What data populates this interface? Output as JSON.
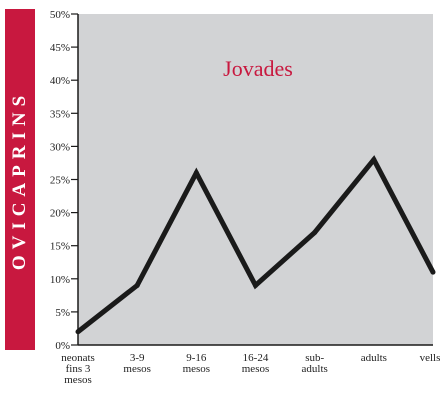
{
  "side_label": "OVICAPRINS",
  "colors": {
    "accent": "#c8183f",
    "plot_bg": "#d2d3d5",
    "line": "#1a1a1a"
  },
  "chart_data": {
    "type": "line",
    "title": "Jovades",
    "categories": [
      [
        "neonats",
        "fins 3",
        "mesos"
      ],
      [
        "3-9",
        "mesos"
      ],
      [
        "9-16",
        "mesos"
      ],
      [
        "16-24",
        "mesos"
      ],
      [
        "sub-",
        "adults"
      ],
      [
        "adults"
      ],
      [
        "vells"
      ]
    ],
    "values": [
      2,
      9,
      26,
      9,
      17,
      28,
      11
    ],
    "ylim": [
      0,
      50
    ],
    "yticks": [
      "0%",
      "5%",
      "10%",
      "15%",
      "20%",
      "25%",
      "30%",
      "35%",
      "40%",
      "45%",
      "50%"
    ],
    "grid": false,
    "xlabel": "",
    "ylabel": ""
  }
}
